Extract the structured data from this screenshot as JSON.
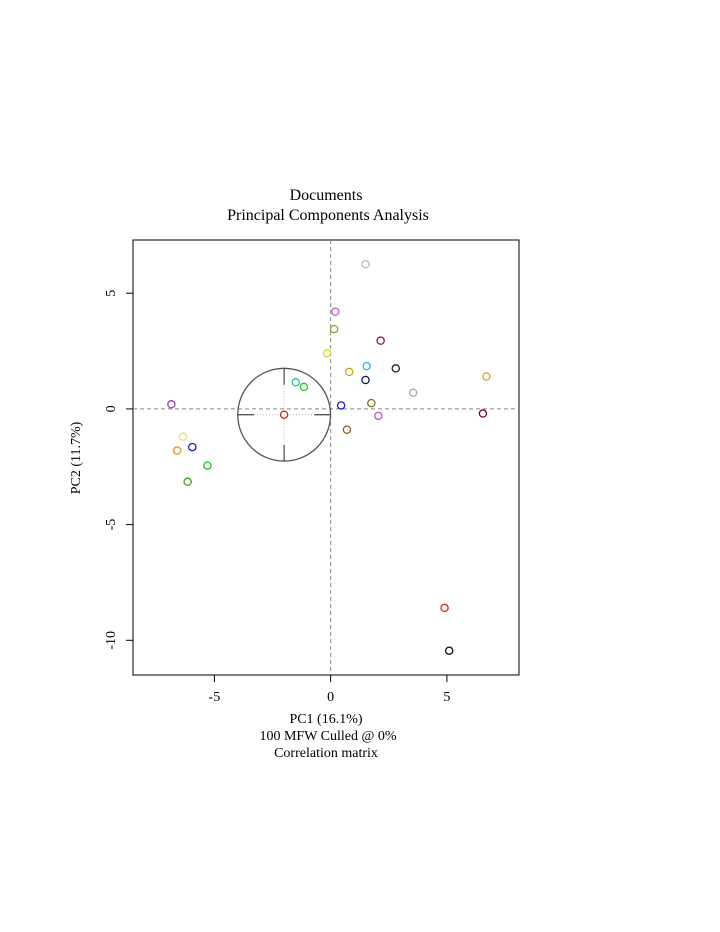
{
  "chart_data": {
    "type": "scatter",
    "title": "Documents",
    "subtitle": "Principal Components Analysis",
    "xlabel": "PC1 (16.1%)",
    "ylabel": "PC2 (11.7%)",
    "caption_lines": [
      "100 MFW  Culled @ 0%",
      "Correlation matrix"
    ],
    "xlim": [
      -8.5,
      8.1
    ],
    "ylim": [
      -11.5,
      7.3
    ],
    "x_ticks": [
      {
        "value": -5,
        "label": "-5"
      },
      {
        "value": 0,
        "label": "0"
      },
      {
        "value": 5,
        "label": "5"
      }
    ],
    "y_ticks": [
      {
        "value": -10,
        "label": "-10"
      },
      {
        "value": -5,
        "label": "-5"
      },
      {
        "value": 0,
        "label": "0"
      },
      {
        "value": 5,
        "label": "5"
      }
    ],
    "grid": false,
    "reference_lines": {
      "x": 0,
      "y": 0,
      "style": "dashed"
    },
    "centroid": {
      "x": -2.0,
      "y": -0.25,
      "radius_x": 2.0,
      "radius_y": 2.0,
      "color": "#555555"
    },
    "points": [
      {
        "x": 1.5,
        "y": 6.25,
        "color": "#bbbbbb"
      },
      {
        "x": 0.2,
        "y": 4.2,
        "color": "#c060c0"
      },
      {
        "x": 0.15,
        "y": 3.45,
        "color": "#9a9a3a"
      },
      {
        "x": 2.15,
        "y": 2.95,
        "color": "#a01040"
      },
      {
        "x": -0.15,
        "y": 2.4,
        "color": "#d8d820"
      },
      {
        "x": 1.55,
        "y": 1.85,
        "color": "#20c0e0"
      },
      {
        "x": 2.8,
        "y": 1.75,
        "color": "#202020"
      },
      {
        "x": 0.8,
        "y": 1.6,
        "color": "#c0b020"
      },
      {
        "x": 1.5,
        "y": 1.25,
        "color": "#101060"
      },
      {
        "x": 6.7,
        "y": 1.4,
        "color": "#e0a020"
      },
      {
        "x": -1.5,
        "y": 1.15,
        "color": "#20c0a0"
      },
      {
        "x": -1.15,
        "y": 0.95,
        "color": "#20d020"
      },
      {
        "x": 3.55,
        "y": 0.7,
        "color": "#aaaaaa"
      },
      {
        "x": 1.75,
        "y": 0.25,
        "color": "#807020"
      },
      {
        "x": 0.45,
        "y": 0.15,
        "color": "#2020c0"
      },
      {
        "x": -6.85,
        "y": 0.2,
        "color": "#a040c0"
      },
      {
        "x": -2.0,
        "y": -0.25,
        "color": "#e02020"
      },
      {
        "x": 2.05,
        "y": -0.3,
        "color": "#c050d0"
      },
      {
        "x": 6.55,
        "y": -0.2,
        "color": "#800040"
      },
      {
        "x": 0.7,
        "y": -0.9,
        "color": "#906020"
      },
      {
        "x": -6.35,
        "y": -1.2,
        "color": "#e0e080"
      },
      {
        "x": -5.95,
        "y": -1.65,
        "color": "#2020b0"
      },
      {
        "x": -6.6,
        "y": -1.8,
        "color": "#e0a020"
      },
      {
        "x": -5.3,
        "y": -2.45,
        "color": "#20c020"
      },
      {
        "x": -6.15,
        "y": -3.15,
        "color": "#40a020"
      },
      {
        "x": 4.9,
        "y": -8.6,
        "color": "#e02020"
      },
      {
        "x": 5.1,
        "y": -10.45,
        "color": "#101010"
      }
    ]
  }
}
